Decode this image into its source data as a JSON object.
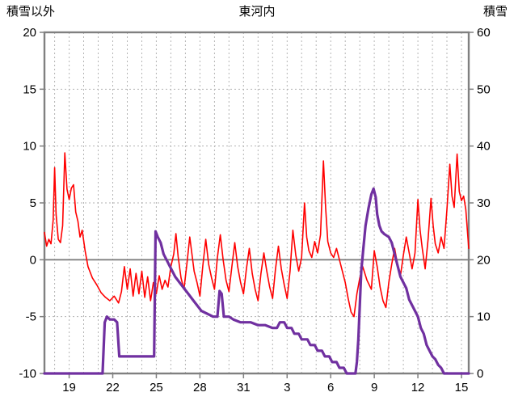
{
  "header": {
    "left_axis_title": "積雪以外",
    "title": "東河内",
    "right_axis_title": "積雪"
  },
  "chart_data": {
    "type": "line",
    "title": "東河内",
    "legend": "none",
    "grid": "on",
    "grid_color": "#b3b3b3",
    "frame_color": "#808080",
    "zero_line_color": "#808080",
    "left_axis": {
      "label": "積雪以外",
      "min": -10,
      "max": 20,
      "ticks": [
        20,
        15,
        10,
        5,
        0,
        -5,
        -10
      ]
    },
    "right_axis": {
      "label": "積雪",
      "min": 0,
      "max": 60,
      "ticks": [
        60,
        50,
        40,
        30,
        20,
        10,
        0
      ]
    },
    "x_axis": {
      "min": 17.3,
      "max": 46.5,
      "tick_days": [
        19,
        22,
        25,
        28,
        31,
        34,
        37,
        40,
        43,
        46
      ],
      "tick_labels": [
        "19",
        "22",
        "25",
        "28",
        "31",
        "3",
        "6",
        "9",
        "12",
        "15"
      ],
      "day_gridlines": true
    },
    "series": [
      {
        "name": "temperature-non-snow",
        "axis": "left",
        "color": "#ff0000",
        "width": 1.6,
        "points": [
          [
            17.3,
            2.4
          ],
          [
            17.45,
            1.2
          ],
          [
            17.6,
            1.8
          ],
          [
            17.75,
            1.4
          ],
          [
            17.9,
            3.5
          ],
          [
            18.0,
            8.1
          ],
          [
            18.1,
            4.0
          ],
          [
            18.25,
            1.8
          ],
          [
            18.4,
            1.5
          ],
          [
            18.55,
            3.0
          ],
          [
            18.7,
            9.4
          ],
          [
            18.85,
            6.2
          ],
          [
            19.0,
            5.3
          ],
          [
            19.15,
            6.3
          ],
          [
            19.3,
            6.6
          ],
          [
            19.45,
            4.2
          ],
          [
            19.6,
            3.4
          ],
          [
            19.75,
            2.0
          ],
          [
            19.9,
            2.6
          ],
          [
            20.1,
            0.8
          ],
          [
            20.3,
            -0.6
          ],
          [
            20.6,
            -1.6
          ],
          [
            20.9,
            -2.2
          ],
          [
            21.2,
            -2.9
          ],
          [
            21.5,
            -3.3
          ],
          [
            21.8,
            -3.6
          ],
          [
            22.1,
            -3.2
          ],
          [
            22.4,
            -3.8
          ],
          [
            22.6,
            -2.8
          ],
          [
            22.8,
            -0.6
          ],
          [
            23.0,
            -2.6
          ],
          [
            23.2,
            -0.8
          ],
          [
            23.4,
            -3.2
          ],
          [
            23.6,
            -1.2
          ],
          [
            23.8,
            -3.0
          ],
          [
            24.0,
            -1.0
          ],
          [
            24.2,
            -3.3
          ],
          [
            24.4,
            -1.5
          ],
          [
            24.6,
            -3.6
          ],
          [
            24.8,
            -2.0
          ],
          [
            25.0,
            -3.0
          ],
          [
            25.2,
            -1.4
          ],
          [
            25.4,
            -2.6
          ],
          [
            25.6,
            -1.8
          ],
          [
            25.8,
            -2.4
          ],
          [
            26.0,
            -0.6
          ],
          [
            26.2,
            0.5
          ],
          [
            26.35,
            2.3
          ],
          [
            26.5,
            0.3
          ],
          [
            26.7,
            -1.6
          ],
          [
            26.9,
            -2.6
          ],
          [
            27.1,
            -0.4
          ],
          [
            27.3,
            2.0
          ],
          [
            27.45,
            0.5
          ],
          [
            27.6,
            -1.0
          ],
          [
            27.8,
            -2.0
          ],
          [
            28.0,
            -3.2
          ],
          [
            28.2,
            -0.5
          ],
          [
            28.4,
            1.8
          ],
          [
            28.6,
            -0.4
          ],
          [
            28.8,
            -1.6
          ],
          [
            29.0,
            -2.6
          ],
          [
            29.2,
            0.2
          ],
          [
            29.4,
            2.2
          ],
          [
            29.6,
            0.0
          ],
          [
            29.8,
            -1.8
          ],
          [
            30.0,
            -2.8
          ],
          [
            30.2,
            -0.6
          ],
          [
            30.4,
            1.5
          ],
          [
            30.6,
            -0.6
          ],
          [
            30.8,
            -2.0
          ],
          [
            31.0,
            -3.0
          ],
          [
            31.2,
            -0.8
          ],
          [
            31.4,
            1.0
          ],
          [
            31.6,
            -1.2
          ],
          [
            31.8,
            -2.6
          ],
          [
            32.0,
            -3.6
          ],
          [
            32.2,
            -1.2
          ],
          [
            32.4,
            0.6
          ],
          [
            32.6,
            -1.0
          ],
          [
            32.8,
            -2.4
          ],
          [
            33.0,
            -3.4
          ],
          [
            33.2,
            -0.8
          ],
          [
            33.4,
            1.2
          ],
          [
            33.6,
            -0.8
          ],
          [
            33.8,
            -2.2
          ],
          [
            34.0,
            -3.4
          ],
          [
            34.2,
            -1.0
          ],
          [
            34.4,
            2.6
          ],
          [
            34.6,
            0.4
          ],
          [
            34.8,
            -1.0
          ],
          [
            35.0,
            0.2
          ],
          [
            35.2,
            5.0
          ],
          [
            35.35,
            2.0
          ],
          [
            35.5,
            0.8
          ],
          [
            35.7,
            0.2
          ],
          [
            35.9,
            1.6
          ],
          [
            36.1,
            0.6
          ],
          [
            36.3,
            2.2
          ],
          [
            36.5,
            8.7
          ],
          [
            36.65,
            4.6
          ],
          [
            36.8,
            1.6
          ],
          [
            37.0,
            0.6
          ],
          [
            37.2,
            0.2
          ],
          [
            37.4,
            1.0
          ],
          [
            37.6,
            0.0
          ],
          [
            37.8,
            -1.0
          ],
          [
            38.0,
            -2.0
          ],
          [
            38.2,
            -3.4
          ],
          [
            38.4,
            -4.6
          ],
          [
            38.6,
            -5.0
          ],
          [
            38.8,
            -3.0
          ],
          [
            39.0,
            -1.6
          ],
          [
            39.2,
            -0.6
          ],
          [
            39.5,
            -1.8
          ],
          [
            39.8,
            -2.6
          ],
          [
            40.0,
            0.8
          ],
          [
            40.2,
            -0.6
          ],
          [
            40.4,
            -2.4
          ],
          [
            40.6,
            -3.6
          ],
          [
            40.8,
            -4.2
          ],
          [
            41.0,
            -2.0
          ],
          [
            41.2,
            -0.4
          ],
          [
            41.4,
            1.0
          ],
          [
            41.6,
            -0.4
          ],
          [
            41.8,
            -1.4
          ],
          [
            42.0,
            0.4
          ],
          [
            42.2,
            2.0
          ],
          [
            42.4,
            0.6
          ],
          [
            42.6,
            -0.8
          ],
          [
            42.8,
            0.6
          ],
          [
            43.0,
            5.3
          ],
          [
            43.15,
            2.6
          ],
          [
            43.3,
            1.0
          ],
          [
            43.5,
            -0.8
          ],
          [
            43.7,
            1.8
          ],
          [
            43.9,
            5.4
          ],
          [
            44.05,
            3.0
          ],
          [
            44.2,
            1.4
          ],
          [
            44.4,
            0.6
          ],
          [
            44.6,
            2.0
          ],
          [
            44.8,
            1.0
          ],
          [
            45.0,
            4.4
          ],
          [
            45.2,
            8.4
          ],
          [
            45.35,
            5.6
          ],
          [
            45.5,
            4.6
          ],
          [
            45.7,
            9.3
          ],
          [
            45.85,
            6.0
          ],
          [
            46.0,
            5.2
          ],
          [
            46.15,
            5.6
          ],
          [
            46.3,
            4.4
          ],
          [
            46.5,
            1.0
          ]
        ]
      },
      {
        "name": "snow-depth",
        "axis": "right",
        "color": "#7030a0",
        "width": 3.2,
        "points": [
          [
            17.3,
            0
          ],
          [
            21.3,
            0
          ],
          [
            21.45,
            9
          ],
          [
            21.6,
            10
          ],
          [
            21.8,
            9.5
          ],
          [
            22.1,
            9.5
          ],
          [
            22.3,
            9
          ],
          [
            22.45,
            3
          ],
          [
            22.6,
            3
          ],
          [
            24.85,
            3
          ],
          [
            24.95,
            25
          ],
          [
            25.1,
            24
          ],
          [
            25.3,
            23
          ],
          [
            25.5,
            21
          ],
          [
            25.7,
            20
          ],
          [
            25.9,
            19
          ],
          [
            26.1,
            18
          ],
          [
            26.3,
            17
          ],
          [
            26.6,
            16
          ],
          [
            26.9,
            15
          ],
          [
            27.2,
            14
          ],
          [
            27.5,
            13
          ],
          [
            27.8,
            12
          ],
          [
            28.1,
            11
          ],
          [
            28.5,
            10.5
          ],
          [
            28.9,
            10
          ],
          [
            29.2,
            10
          ],
          [
            29.35,
            14.5
          ],
          [
            29.5,
            14
          ],
          [
            29.65,
            10
          ],
          [
            30.0,
            10
          ],
          [
            30.3,
            9.5
          ],
          [
            30.8,
            9
          ],
          [
            31.5,
            9
          ],
          [
            32.0,
            8.5
          ],
          [
            32.5,
            8.5
          ],
          [
            33.0,
            8
          ],
          [
            33.3,
            8
          ],
          [
            33.5,
            9
          ],
          [
            33.8,
            9
          ],
          [
            34.0,
            8
          ],
          [
            34.3,
            8
          ],
          [
            34.5,
            7
          ],
          [
            34.8,
            7
          ],
          [
            35.0,
            6
          ],
          [
            35.4,
            6
          ],
          [
            35.6,
            5
          ],
          [
            35.9,
            5
          ],
          [
            36.1,
            4
          ],
          [
            36.4,
            4
          ],
          [
            36.6,
            3
          ],
          [
            36.9,
            3
          ],
          [
            37.1,
            2
          ],
          [
            37.4,
            2
          ],
          [
            37.6,
            1
          ],
          [
            37.9,
            1
          ],
          [
            38.1,
            0
          ],
          [
            38.7,
            0
          ],
          [
            38.8,
            2
          ],
          [
            38.9,
            6
          ],
          [
            39.0,
            12
          ],
          [
            39.1,
            18
          ],
          [
            39.25,
            22
          ],
          [
            39.4,
            26
          ],
          [
            39.6,
            29
          ],
          [
            39.8,
            31.5
          ],
          [
            39.95,
            32.5
          ],
          [
            40.1,
            31
          ],
          [
            40.2,
            28
          ],
          [
            40.35,
            26
          ],
          [
            40.5,
            25
          ],
          [
            40.7,
            24.5
          ],
          [
            41.0,
            24
          ],
          [
            41.2,
            23
          ],
          [
            41.4,
            21
          ],
          [
            41.6,
            19
          ],
          [
            41.8,
            17
          ],
          [
            42.0,
            16
          ],
          [
            42.2,
            15
          ],
          [
            42.4,
            13
          ],
          [
            42.6,
            12
          ],
          [
            42.8,
            11
          ],
          [
            43.0,
            10
          ],
          [
            43.2,
            8
          ],
          [
            43.4,
            7
          ],
          [
            43.6,
            5
          ],
          [
            43.8,
            4
          ],
          [
            44.0,
            3
          ],
          [
            44.2,
            2.5
          ],
          [
            44.4,
            1.5
          ],
          [
            44.6,
            1
          ],
          [
            44.8,
            0
          ],
          [
            46.5,
            0
          ]
        ]
      }
    ]
  }
}
